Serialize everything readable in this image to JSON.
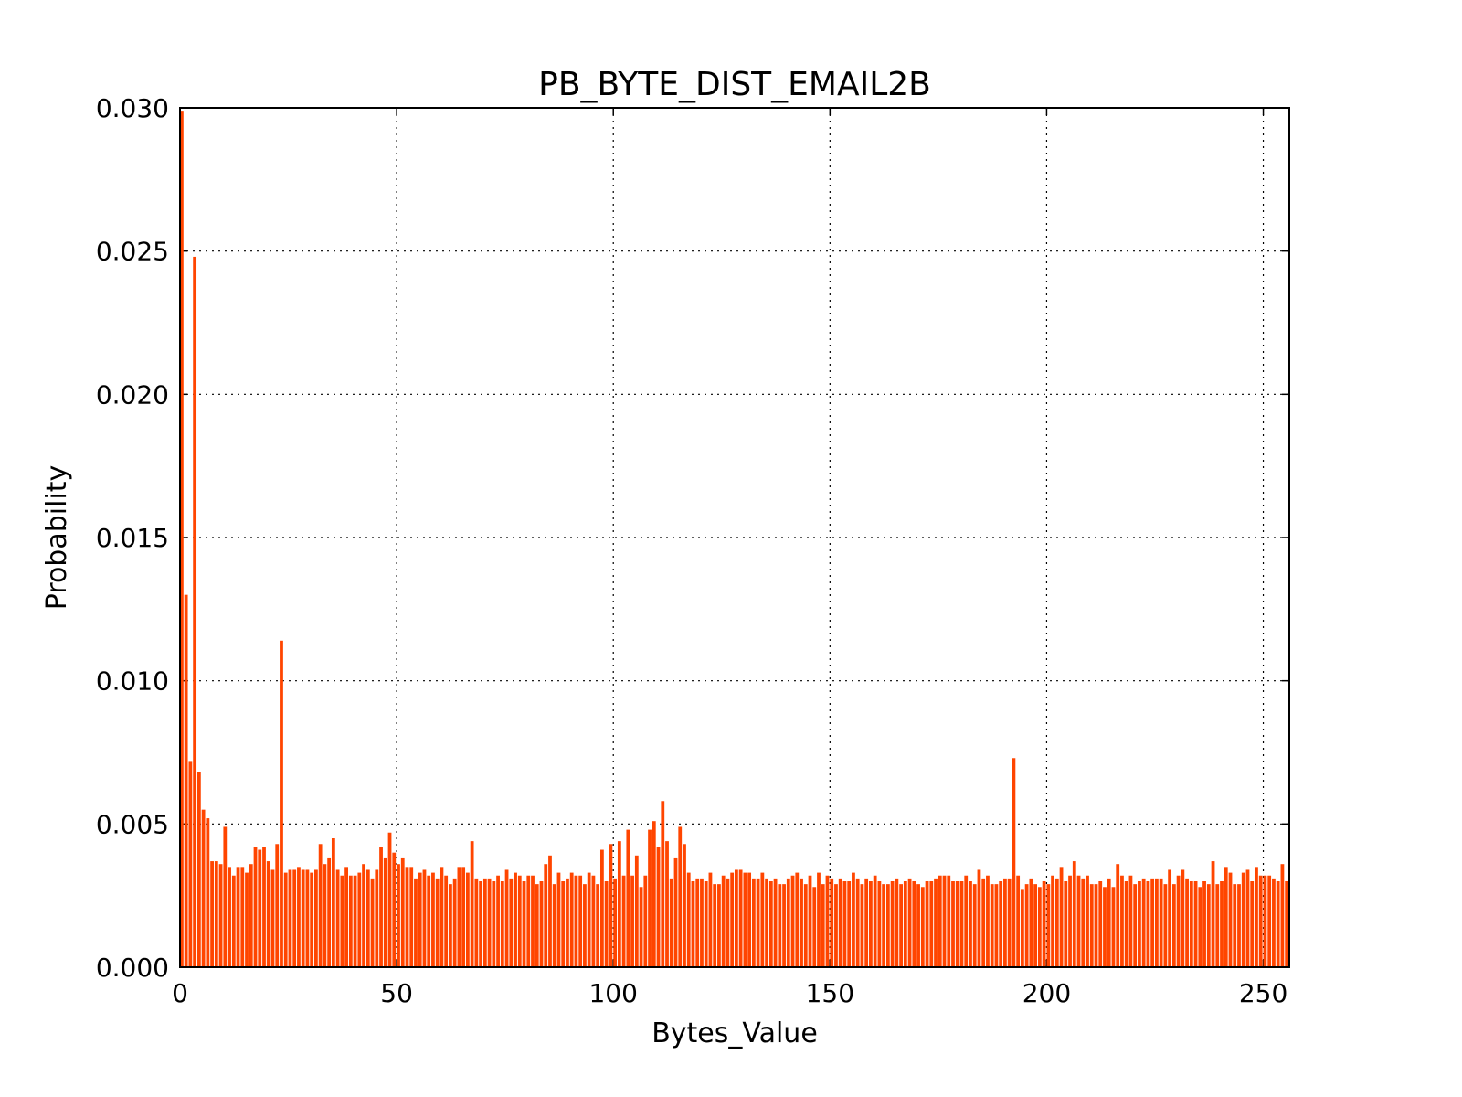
{
  "chart_data": {
    "type": "bar",
    "title": "PB_BYTE_DIST_EMAIL2B",
    "x_label": "Bytes_Value",
    "y_label": "Probability",
    "color": "#ff4500",
    "grid": true,
    "xlim": [
      0,
      256
    ],
    "xticks": [
      0,
      50,
      100,
      150,
      200,
      250
    ],
    "ylim": [
      0,
      0.03
    ],
    "yticks": [
      {
        "value": 0,
        "label": "0.000"
      },
      {
        "value": 0.005,
        "label": "0.005"
      },
      {
        "value": 0.01,
        "label": "0.010"
      },
      {
        "value": 0.015,
        "label": "0.015"
      },
      {
        "value": 0.02,
        "label": "0.020"
      },
      {
        "value": 0.025,
        "label": "0.025"
      },
      {
        "value": 0.03,
        "label": "0.030"
      }
    ],
    "x": [
      0,
      1,
      2,
      3,
      4,
      5,
      6,
      7,
      8,
      9,
      10,
      11,
      12,
      13,
      14,
      15,
      16,
      17,
      18,
      19,
      20,
      21,
      22,
      23,
      24,
      25,
      26,
      27,
      28,
      29,
      30,
      31,
      32,
      33,
      34,
      35,
      36,
      37,
      38,
      39,
      40,
      41,
      42,
      43,
      44,
      45,
      46,
      47,
      48,
      49,
      50,
      51,
      52,
      53,
      54,
      55,
      56,
      57,
      58,
      59,
      60,
      61,
      62,
      63,
      64,
      65,
      66,
      67,
      68,
      69,
      70,
      71,
      72,
      73,
      74,
      75,
      76,
      77,
      78,
      79,
      80,
      81,
      82,
      83,
      84,
      85,
      86,
      87,
      88,
      89,
      90,
      91,
      92,
      93,
      94,
      95,
      96,
      97,
      98,
      99,
      100,
      101,
      102,
      103,
      104,
      105,
      106,
      107,
      108,
      109,
      110,
      111,
      112,
      113,
      114,
      115,
      116,
      117,
      118,
      119,
      120,
      121,
      122,
      123,
      124,
      125,
      126,
      127,
      128,
      129,
      130,
      131,
      132,
      133,
      134,
      135,
      136,
      137,
      138,
      139,
      140,
      141,
      142,
      143,
      144,
      145,
      146,
      147,
      148,
      149,
      150,
      151,
      152,
      153,
      154,
      155,
      156,
      157,
      158,
      159,
      160,
      161,
      162,
      163,
      164,
      165,
      166,
      167,
      168,
      169,
      170,
      171,
      172,
      173,
      174,
      175,
      176,
      177,
      178,
      179,
      180,
      181,
      182,
      183,
      184,
      185,
      186,
      187,
      188,
      189,
      190,
      191,
      192,
      193,
      194,
      195,
      196,
      197,
      198,
      199,
      200,
      201,
      202,
      203,
      204,
      205,
      206,
      207,
      208,
      209,
      210,
      211,
      212,
      213,
      214,
      215,
      216,
      217,
      218,
      219,
      220,
      221,
      222,
      223,
      224,
      225,
      226,
      227,
      228,
      229,
      230,
      231,
      232,
      233,
      234,
      235,
      236,
      237,
      238,
      239,
      240,
      241,
      242,
      243,
      244,
      245,
      246,
      247,
      248,
      249,
      250,
      251,
      252,
      253,
      254,
      255
    ],
    "values": [
      0.0299,
      0.013,
      0.0072,
      0.0248,
      0.0068,
      0.0055,
      0.0052,
      0.0037,
      0.0037,
      0.0036,
      0.0049,
      0.0035,
      0.0032,
      0.0035,
      0.0035,
      0.0033,
      0.0036,
      0.0042,
      0.0041,
      0.0042,
      0.0037,
      0.0034,
      0.0043,
      0.0114,
      0.0033,
      0.0034,
      0.0034,
      0.0035,
      0.0034,
      0.0034,
      0.0033,
      0.0034,
      0.0043,
      0.0036,
      0.0038,
      0.0045,
      0.0034,
      0.0032,
      0.0035,
      0.0032,
      0.0032,
      0.0033,
      0.0036,
      0.0034,
      0.0031,
      0.0034,
      0.0042,
      0.0038,
      0.0047,
      0.004,
      0.0036,
      0.0038,
      0.0035,
      0.0035,
      0.0031,
      0.0033,
      0.0034,
      0.0032,
      0.0033,
      0.0031,
      0.0035,
      0.0032,
      0.0029,
      0.0031,
      0.0035,
      0.0035,
      0.0033,
      0.0044,
      0.0031,
      0.003,
      0.0031,
      0.0031,
      0.003,
      0.0032,
      0.003,
      0.0034,
      0.0031,
      0.0033,
      0.0032,
      0.003,
      0.0032,
      0.0032,
      0.0029,
      0.003,
      0.0036,
      0.0039,
      0.0029,
      0.0033,
      0.003,
      0.0031,
      0.0033,
      0.0032,
      0.0032,
      0.0029,
      0.0033,
      0.0032,
      0.0029,
      0.0041,
      0.003,
      0.0043,
      0.0031,
      0.0044,
      0.0032,
      0.0048,
      0.0032,
      0.0039,
      0.0028,
      0.0032,
      0.0048,
      0.0051,
      0.0042,
      0.0058,
      0.0044,
      0.0031,
      0.0038,
      0.0049,
      0.0043,
      0.0033,
      0.003,
      0.0031,
      0.0031,
      0.003,
      0.0033,
      0.0029,
      0.0029,
      0.0032,
      0.0031,
      0.0033,
      0.0034,
      0.0034,
      0.0033,
      0.0033,
      0.0031,
      0.0031,
      0.0033,
      0.0031,
      0.003,
      0.0031,
      0.0029,
      0.0029,
      0.0031,
      0.0032,
      0.0033,
      0.0031,
      0.0029,
      0.0032,
      0.0028,
      0.0033,
      0.0029,
      0.0032,
      0.0031,
      0.0029,
      0.0031,
      0.003,
      0.003,
      0.0033,
      0.0031,
      0.0029,
      0.0031,
      0.003,
      0.0032,
      0.003,
      0.0029,
      0.0029,
      0.003,
      0.0031,
      0.0029,
      0.003,
      0.0031,
      0.003,
      0.0029,
      0.0028,
      0.003,
      0.003,
      0.0031,
      0.0032,
      0.0032,
      0.0032,
      0.003,
      0.003,
      0.003,
      0.0032,
      0.003,
      0.0029,
      0.0034,
      0.0031,
      0.0032,
      0.0029,
      0.0029,
      0.003,
      0.0031,
      0.0031,
      0.0073,
      0.0032,
      0.0027,
      0.0029,
      0.0031,
      0.0029,
      0.0028,
      0.003,
      0.0029,
      0.0032,
      0.0031,
      0.0035,
      0.003,
      0.0032,
      0.0037,
      0.0032,
      0.0031,
      0.0032,
      0.0029,
      0.0029,
      0.003,
      0.0028,
      0.0031,
      0.0028,
      0.0036,
      0.0032,
      0.003,
      0.0032,
      0.0029,
      0.003,
      0.0031,
      0.003,
      0.0031,
      0.0031,
      0.0031,
      0.0029,
      0.0034,
      0.0029,
      0.0032,
      0.0034,
      0.0031,
      0.003,
      0.003,
      0.0028,
      0.003,
      0.0029,
      0.0037,
      0.0029,
      0.003,
      0.0035,
      0.0033,
      0.0029,
      0.0029,
      0.0033,
      0.0034,
      0.003,
      0.0035,
      0.0032,
      0.0032,
      0.0032,
      0.0031,
      0.003,
      0.0036,
      0.003
    ]
  }
}
